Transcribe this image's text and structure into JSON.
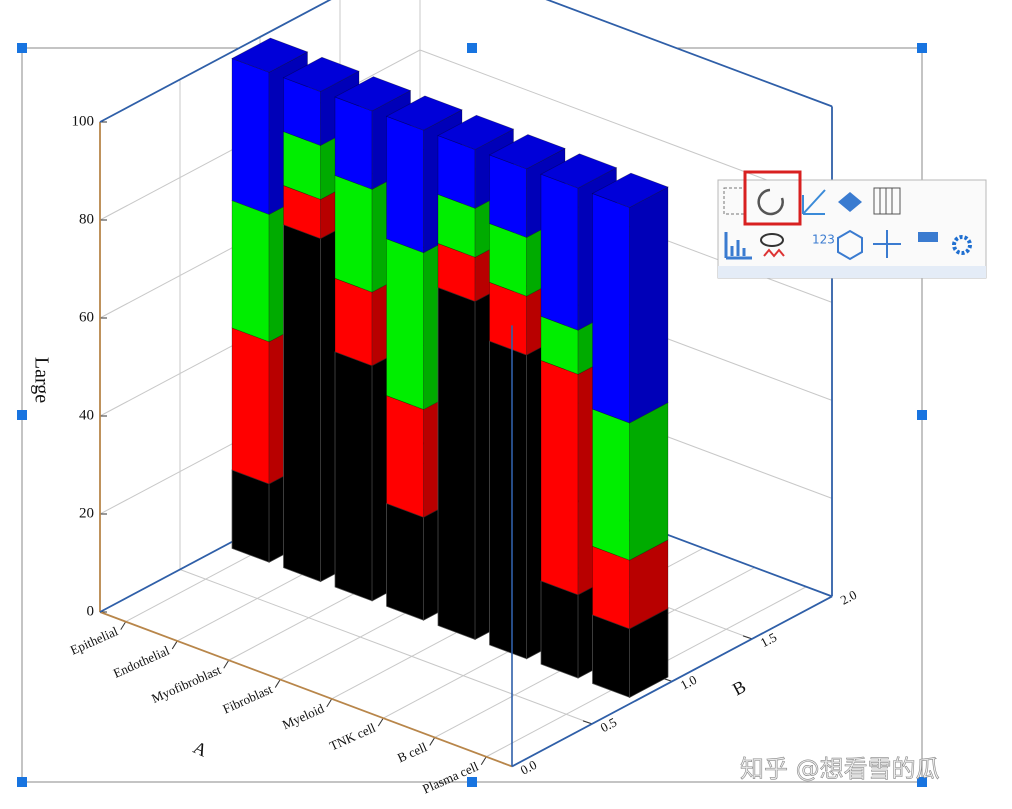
{
  "chart_data": {
    "type": "bar3d_stacked",
    "y_label": "Large",
    "x_label": "A",
    "z_label": "B",
    "categories": [
      "Epithelial",
      "Endothelial",
      "Myofibroblast",
      "Fibroblast",
      "Myeloid",
      "TNK cell",
      "B cell",
      "Plasma cell"
    ],
    "series": [
      {
        "color": "#000000",
        "values": [
          16,
          70,
          48,
          21,
          69,
          62,
          17,
          14
        ]
      },
      {
        "color": "#ff0000",
        "values": [
          29,
          8,
          15,
          22,
          9,
          12,
          45,
          14
        ]
      },
      {
        "color": "#00ee00",
        "values": [
          26,
          11,
          21,
          32,
          10,
          12,
          9,
          28
        ]
      },
      {
        "color": "#0000ff",
        "values": [
          29,
          11,
          16,
          25,
          12,
          14,
          29,
          44
        ]
      }
    ],
    "ylim": [
      0,
      100
    ],
    "yticks": [
      0,
      20,
      40,
      60,
      80,
      100
    ],
    "zlim": [
      0,
      2
    ],
    "zticks": [
      {
        "value": 0,
        "label": "0.0"
      },
      0.5,
      {
        "value": 1,
        "label": "1.0"
      },
      1.5,
      {
        "value": 2,
        "label": "2.0"
      }
    ],
    "grid": true
  },
  "watermark": "知乎 @想看雪的瓜"
}
